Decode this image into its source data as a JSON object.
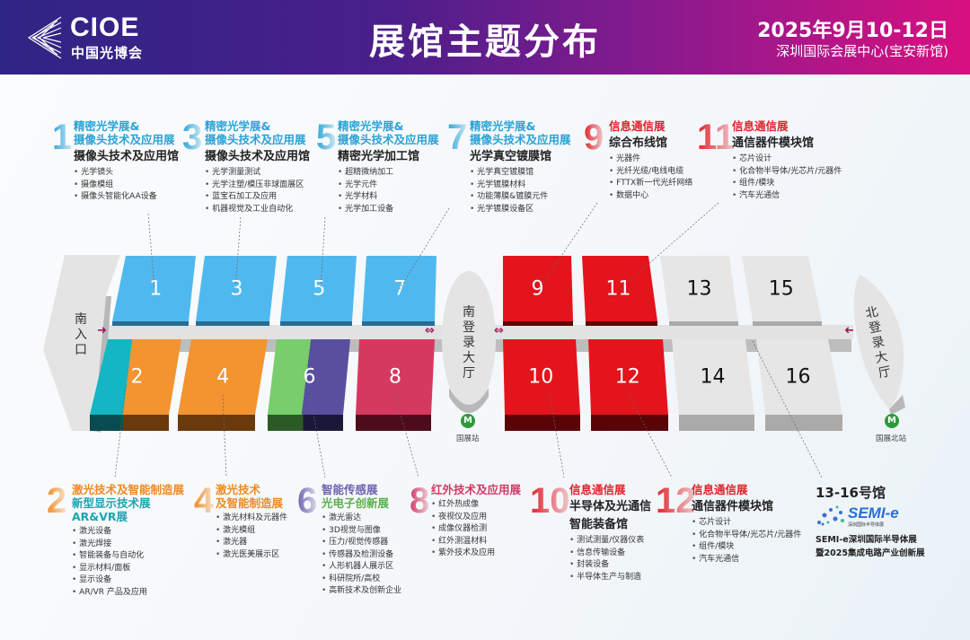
{
  "header": {
    "logo_text": "CIOE",
    "logo_cn": "中国光博会",
    "title": "展馆主题分布",
    "date": "2025年9月10-12日",
    "venue": "深圳国际会展中心(宝安新馆)"
  },
  "map": {
    "south_entrance": "南入口",
    "south_lobby": "南登录大厅",
    "north_lobby": "北登录大厅",
    "station_south": "国展站",
    "station_north": "国展北站",
    "metro_icon": "metro-icon",
    "halls": [
      {
        "label": "1",
        "color": "#4fb9ef",
        "side": "#2b6c93",
        "text": "#ffffff"
      },
      {
        "label": "3",
        "color": "#4fb9ef",
        "side": "#2b6c93",
        "text": "#ffffff"
      },
      {
        "label": "5",
        "color": "#4fb9ef",
        "side": "#2b6c93",
        "text": "#ffffff"
      },
      {
        "label": "7",
        "color": "#4fb9ef",
        "side": "#2b6c93",
        "text": "#ffffff"
      },
      {
        "label": "9",
        "color": "#e3141c",
        "side": "#5a0407",
        "text": "#ffffff"
      },
      {
        "label": "11",
        "color": "#e3141c",
        "side": "#5a0407",
        "text": "#ffffff"
      },
      {
        "label": "13",
        "color": "#e6e6e6",
        "side": "#aaaaaa",
        "text": "#111111"
      },
      {
        "label": "15",
        "color": "#e6e6e6",
        "side": "#aaaaaa",
        "text": "#111111"
      },
      {
        "label": "2",
        "color": "#13b6c2",
        "color2": "#f39430",
        "side": "#064c50",
        "side2": "#6a3a0c",
        "text": "#ffffff"
      },
      {
        "label": "4",
        "color": "#f39430",
        "side": "#6a3a0c",
        "text": "#ffffff"
      },
      {
        "label": "6",
        "color": "#78cd6c",
        "color2": "#58509f",
        "side": "#2c5a26",
        "side2": "#1a1838",
        "text": "#ffffff"
      },
      {
        "label": "8",
        "color": "#d6395f",
        "side": "#4e0b1c",
        "text": "#ffffff"
      },
      {
        "label": "10",
        "color": "#e3141c",
        "side": "#5a0407",
        "text": "#ffffff"
      },
      {
        "label": "12",
        "color": "#e3141c",
        "side": "#5a0407",
        "text": "#ffffff"
      },
      {
        "label": "14",
        "color": "#e6e6e6",
        "side": "#aaaaaa",
        "text": "#111111"
      },
      {
        "label": "16",
        "color": "#e6e6e6",
        "side": "#aaaaaa",
        "text": "#111111"
      }
    ]
  },
  "blocks": [
    {
      "num": "1",
      "color": "#29a3d8",
      "titles": [
        {
          "text": "精密光学展&",
          "color": "#29a3d8"
        },
        {
          "text": "摄像头技术及应用展",
          "color": "#29a3d8"
        }
      ],
      "subtitle": [
        "摄像头技术及应用馆"
      ],
      "items": [
        "光学镜头",
        "摄像模组",
        "摄像头智能化AA设备"
      ]
    },
    {
      "num": "3",
      "color": "#29a3d8",
      "titles": [
        {
          "text": "精密光学展&",
          "color": "#29a3d8"
        },
        {
          "text": "摄像头技术及应用展",
          "color": "#29a3d8"
        }
      ],
      "subtitle": [
        "摄像头技术及应用馆"
      ],
      "items": [
        "光学测量测试",
        "光学注塑/模压非球面展区",
        "蓝宝石加工及应用",
        "机器视觉及工业自动化"
      ]
    },
    {
      "num": "5",
      "color": "#29a3d8",
      "titles": [
        {
          "text": "精密光学展&",
          "color": "#29a3d8"
        },
        {
          "text": "摄像头技术及应用展",
          "color": "#29a3d8"
        }
      ],
      "subtitle": [
        "精密光学加工馆"
      ],
      "items": [
        "超精微纳加工",
        "光学元件",
        "光学材料",
        "光学加工设备"
      ]
    },
    {
      "num": "7",
      "color": "#29a3d8",
      "titles": [
        {
          "text": "精密光学展&",
          "color": "#29a3d8"
        },
        {
          "text": "摄像头技术及应用展",
          "color": "#29a3d8"
        }
      ],
      "subtitle": [
        "光学真空镀膜馆"
      ],
      "items": [
        "光学真空镀膜馆",
        "光学镀膜材料",
        "功能薄膜&镀膜元件",
        "光学镀膜设备区"
      ]
    },
    {
      "num": "9",
      "color": "#e0222a",
      "titles": [
        {
          "text": "信息通信展",
          "color": "#e0222a"
        }
      ],
      "subtitle": [
        "综合布线馆"
      ],
      "items": [
        "光器件",
        "光纤光缆/电线电缆",
        "FTTX新一代光纤网络",
        "数据中心"
      ]
    },
    {
      "num": "11",
      "color": "#e0222a",
      "titles": [
        {
          "text": "信息通信展",
          "color": "#e0222a"
        }
      ],
      "subtitle": [
        "通信器件模块馆"
      ],
      "items": [
        "芯片设计",
        "化合物半导体/光芯片/元器件",
        "组件/模块",
        "汽车光通信"
      ]
    },
    {
      "num": "2",
      "color": "#ef8a22",
      "titles": [
        {
          "text": "激光技术及智能制造展",
          "color": "#ef8a22"
        },
        {
          "text": "新型显示技术展",
          "color": "#1aa5b0"
        },
        {
          "text": "AR&VR展",
          "color": "#1aa5b0"
        }
      ],
      "subtitle": [],
      "items": [
        "激光设备",
        "激光焊接",
        "智能装备与自动化",
        "显示材料/面板",
        "显示设备",
        "AR/VR 产品及应用"
      ]
    },
    {
      "num": "4",
      "color": "#ef8a22",
      "titles": [
        {
          "text": "激光技术",
          "color": "#ef8a22"
        },
        {
          "text": "及智能制造展",
          "color": "#ef8a22"
        }
      ],
      "subtitle": [],
      "items": [
        "激光材料及元器件",
        "激光模组",
        "激光器",
        "激光医美展示区"
      ]
    },
    {
      "num": "6",
      "color": "#6b62b0",
      "titles": [
        {
          "text": "智能传感展",
          "color": "#6b62b0"
        },
        {
          "text": "光电子创新展",
          "color": "#5bb04a"
        }
      ],
      "subtitle": [],
      "items": [
        "激光雷达",
        "3D视觉与图像",
        "压力/视觉传感器",
        "传感器及检测设备",
        "人形机器人展示区",
        "科研院所/高校",
        "高新技术及创新企业"
      ]
    },
    {
      "num": "8",
      "color": "#d23a64",
      "titles": [
        {
          "text": "红外技术及应用展",
          "color": "#d23a64"
        }
      ],
      "subtitle": [],
      "items": [
        "红外热成像",
        "夜视仪及应用",
        "成像仪器检测",
        "红外测温材料",
        "紫外技术及应用"
      ]
    },
    {
      "num": "10",
      "color": "#e0222a",
      "titles": [
        {
          "text": "信息通信展",
          "color": "#e0222a"
        }
      ],
      "subtitle": [
        "半导体及光通信",
        "智能装备馆"
      ],
      "items": [
        "测试测量/仪器仪表",
        "信息传输设备",
        "封装设备",
        "半导体生产与制造"
      ]
    },
    {
      "num": "12",
      "color": "#e0222a",
      "titles": [
        {
          "text": "信息通信展",
          "color": "#e0222a"
        }
      ],
      "subtitle": [
        "通信器件模块馆"
      ],
      "items": [
        "芯片设计",
        "化合物半导体/光芯片/元器件",
        "组件/模块",
        "汽车光通信"
      ]
    }
  ],
  "semi": {
    "title": "13-16号馆",
    "logo_text": "SEMI-e",
    "logo_sub": "深圳国际半导体展",
    "desc": [
      "SEMI-e深圳国际半导体展",
      "暨2025集成电路产业创新展"
    ]
  }
}
